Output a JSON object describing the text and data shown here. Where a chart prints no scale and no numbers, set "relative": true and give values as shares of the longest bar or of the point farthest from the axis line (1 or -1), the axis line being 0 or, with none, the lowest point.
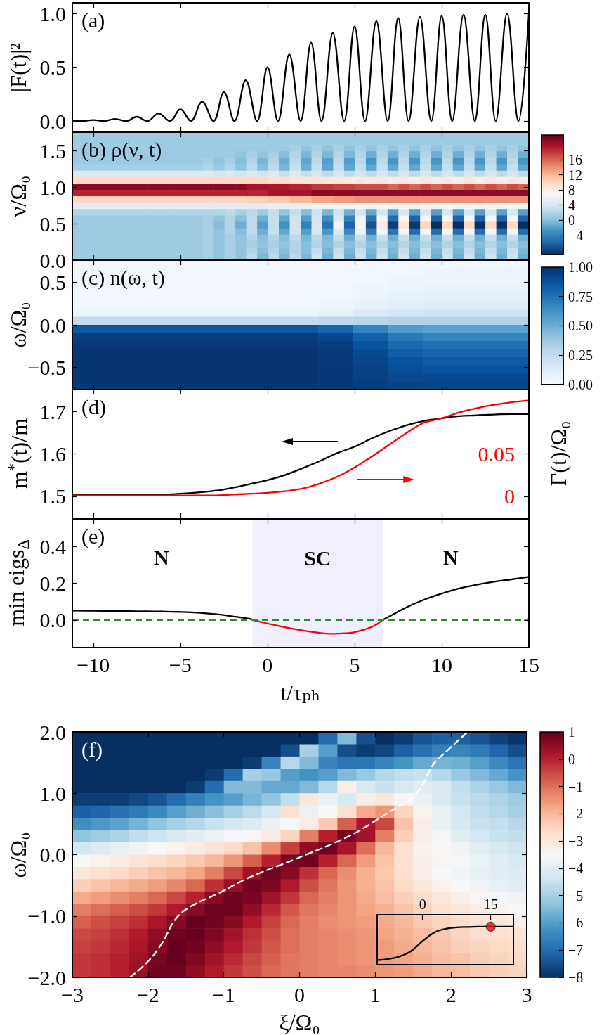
{
  "chart_data": [
    {
      "type": "line",
      "title": "(a)",
      "ylabel": "|F(t)|²",
      "x": [
        -11.2,
        -10.6,
        -10,
        -9.4,
        -8.75,
        -8.1,
        -7.5,
        -6.9,
        -6.25,
        -5.6,
        -5,
        -4.4,
        -3.75,
        -3.1,
        -2.5,
        -1.9,
        -1.25,
        -0.6,
        0,
        0.6,
        1.25,
        1.9,
        2.5,
        3.1,
        3.75,
        4.4,
        5,
        5.6,
        6.25,
        6.9,
        7.5,
        8.1,
        8.75,
        9.4,
        10,
        10.6,
        11.25,
        11.9,
        12.5,
        13.1,
        13.75,
        14.4,
        15
      ],
      "series": [
        {
          "color": "#000000",
          "values": [
            0,
            0,
            0.01,
            0,
            0.02,
            0,
            0.04,
            0,
            0.07,
            0,
            0.11,
            0,
            0.18,
            0,
            0.27,
            0,
            0.38,
            0,
            0.5,
            0,
            0.62,
            0,
            0.73,
            0,
            0.82,
            0,
            0.88,
            0,
            0.93,
            0,
            0.96,
            0,
            0.97,
            0,
            0.98,
            0,
            0.99,
            0,
            0.99,
            0,
            1,
            0,
            1
          ]
        }
      ],
      "xlim": [
        -11.2,
        15
      ],
      "xticks": [
        -10,
        -5,
        0,
        5,
        10,
        15
      ],
      "ylim": [
        -0.1,
        1.1
      ],
      "yticks": [
        {
          "value": 0,
          "label": "0.0"
        },
        0.5,
        {
          "value": 1,
          "label": "1.0"
        }
      ],
      "tick_labels": "y"
    },
    {
      "type": "heatmap",
      "title": "(b) ρ(ν, t)",
      "ylabel": "ν/Ω₀",
      "x": [
        -10.89,
        -10.26,
        -9.64,
        -9.02,
        -8.39,
        -7.77,
        -7.15,
        -6.52,
        -5.9,
        -5.27,
        -4.65,
        -4.03,
        -3.4,
        -2.78,
        -2.16,
        -1.53,
        -0.91,
        -0.28,
        0.34,
        0.96,
        1.59,
        2.21,
        2.84,
        3.46,
        4.08,
        4.71,
        5.33,
        5.96,
        6.58,
        7.2,
        7.83,
        8.45,
        9.07,
        9.7,
        10.32,
        10.95,
        11.57,
        12.19,
        12.82,
        13.44,
        14.06,
        14.69
      ],
      "cells": [
        [
          1,
          1,
          1,
          1,
          1,
          1,
          1,
          1,
          1,
          1,
          1,
          1,
          1,
          1,
          1,
          1,
          1,
          1,
          1,
          1,
          1,
          1,
          1,
          1,
          1,
          1,
          1,
          1,
          1,
          1,
          1,
          1,
          1,
          1,
          1,
          1,
          1,
          1,
          1,
          1,
          1,
          1
        ],
        [
          1,
          1,
          1,
          1,
          1,
          1,
          1,
          1,
          1,
          1,
          1,
          1,
          1,
          1,
          1,
          1,
          1,
          1,
          1,
          1,
          1,
          1,
          1,
          1,
          1,
          1,
          1,
          1,
          1,
          1,
          1,
          1,
          1,
          1,
          1,
          1,
          1,
          1,
          1,
          1,
          1,
          1
        ],
        [
          1,
          1,
          1,
          1,
          1,
          1,
          1,
          1,
          1,
          1,
          1,
          1,
          1,
          1,
          1,
          1,
          1,
          1,
          1,
          1,
          1.5,
          0.5,
          1.5,
          0.5,
          1.5,
          0.5,
          1.5,
          0.5,
          1.5,
          0.5,
          1.5,
          0.5,
          1.5,
          0.5,
          1.5,
          0.5,
          1.5,
          0.5,
          1.5,
          0.5,
          1.5,
          0.5
        ],
        [
          1,
          1,
          1,
          1,
          1,
          1,
          1,
          1,
          1,
          1,
          1,
          1,
          1,
          1,
          1,
          0.5,
          1.5,
          0.5,
          1.5,
          0,
          2,
          -0.5,
          2,
          -0.5,
          2,
          -0.5,
          2,
          -1,
          2,
          -1,
          2,
          -1,
          2,
          -1,
          2,
          -1,
          2,
          -1,
          2,
          -1,
          2,
          -1
        ],
        [
          1,
          1,
          1,
          1,
          1,
          1,
          1,
          1,
          1,
          1,
          1,
          1,
          1.5,
          0.5,
          1.5,
          0,
          2,
          -0.5,
          2,
          -1,
          2.5,
          -1.5,
          2.5,
          -2,
          2.5,
          -2,
          2.5,
          -2.5,
          2.5,
          -2.5,
          2.5,
          -2.5,
          2.5,
          -2.5,
          2.5,
          -2.5,
          2.5,
          -2.5,
          2.5,
          -2.5,
          2.5,
          -2.5
        ],
        [
          1.5,
          1.5,
          1.5,
          1.5,
          1.5,
          1.5,
          1.5,
          1.5,
          1.5,
          1.5,
          1.5,
          1.5,
          2,
          1,
          2,
          0.5,
          2.5,
          0,
          2.5,
          -0.5,
          3,
          -1,
          3,
          -1.5,
          3,
          -1.5,
          3,
          -1.5,
          3,
          -1.5,
          3,
          -1.5,
          3,
          -1.5,
          3,
          -1.5,
          3,
          -1.5,
          3,
          -1.5,
          3,
          -1.5
        ],
        [
          4.5,
          4.5,
          4.5,
          4.5,
          4.5,
          4.5,
          4.5,
          4.5,
          4.5,
          4.5,
          4.5,
          4.5,
          4.5,
          4,
          4.5,
          4,
          4.5,
          3.5,
          4.5,
          3,
          4.5,
          3,
          4,
          2.5,
          4,
          2.5,
          4,
          2.5,
          4,
          2.5,
          4,
          2.5,
          4,
          2.5,
          4,
          2.5,
          4,
          2.5,
          4,
          2.5,
          4,
          2.5
        ],
        [
          10,
          10,
          10,
          10,
          10,
          10,
          10,
          10,
          10,
          10,
          10,
          10,
          10,
          10,
          10,
          10,
          10,
          10,
          9.5,
          9.5,
          9,
          9,
          9,
          8.5,
          8.5,
          8,
          8.5,
          8,
          8.5,
          8,
          8.5,
          8,
          8.5,
          8,
          8.5,
          8,
          8.5,
          8,
          8.5,
          8,
          8.5,
          8
        ],
        [
          21,
          21,
          21,
          21,
          21,
          21,
          21,
          21,
          21,
          21,
          21,
          21,
          21,
          21,
          21,
          21,
          20,
          20,
          19.5,
          19.5,
          19,
          19,
          18,
          18,
          17.5,
          17.5,
          17,
          17,
          17,
          16,
          17,
          16,
          17,
          16,
          17,
          16,
          17,
          16,
          17,
          16,
          17,
          16
        ],
        [
          19,
          19,
          19,
          19,
          19,
          19,
          19,
          19,
          19,
          19,
          19,
          19,
          19,
          19,
          19,
          19,
          19,
          19,
          20,
          20,
          20,
          20,
          21,
          21,
          21,
          21,
          21,
          21,
          21,
          21,
          21,
          21,
          21,
          21,
          21,
          21,
          21,
          21,
          21,
          21,
          21,
          21
        ],
        [
          10,
          10,
          10,
          10,
          10,
          10,
          10,
          10,
          10,
          10,
          10,
          10,
          10,
          10,
          10,
          10,
          10.5,
          10.5,
          11,
          11,
          12,
          12,
          13,
          13,
          13.5,
          13.5,
          14,
          14,
          14,
          14,
          14,
          14,
          14,
          14,
          14,
          14,
          14,
          14,
          14,
          14,
          14,
          14
        ],
        [
          5,
          5,
          5,
          5,
          5,
          5,
          5,
          5,
          5,
          5,
          5,
          5,
          5,
          5,
          5,
          5,
          5,
          5,
          5.5,
          5.5,
          5.5,
          5.5,
          6,
          6,
          6,
          6,
          7,
          6,
          7,
          6,
          7,
          6,
          7,
          6,
          7,
          6,
          7,
          6,
          7,
          6,
          7,
          6
        ],
        [
          2,
          2,
          2,
          2,
          2,
          2,
          2,
          2,
          2,
          2,
          2,
          2,
          2,
          2,
          2.5,
          1.5,
          2.5,
          1,
          3,
          0.5,
          3,
          0,
          3.5,
          -0.5,
          3.5,
          -1,
          4,
          -1.5,
          4,
          -2,
          4,
          -2,
          4,
          -2,
          4,
          -2,
          4,
          -2,
          4,
          -2,
          4,
          -2
        ],
        [
          1,
          1,
          1,
          1,
          1,
          1,
          1,
          1,
          1,
          1,
          1,
          1,
          1.5,
          0.5,
          2,
          0,
          2.5,
          -1,
          3,
          -1.5,
          3.5,
          -2,
          4,
          -3,
          4.5,
          -4,
          6,
          -5,
          6.5,
          -5.5,
          7,
          -6,
          7,
          -6,
          7,
          -6,
          7,
          -6,
          7,
          -6,
          7,
          -6
        ],
        [
          1,
          1,
          1,
          1,
          1,
          1,
          1,
          1,
          1,
          1,
          1,
          1,
          1.5,
          0,
          2,
          -1,
          2.5,
          -2,
          3,
          -3,
          3.5,
          -4,
          4,
          -5,
          6,
          -6,
          7,
          -7,
          8,
          -8,
          9,
          -8.5,
          10,
          -9,
          10,
          -9,
          10,
          -9,
          10,
          -9,
          10,
          -9
        ],
        [
          1,
          1,
          1,
          1,
          1,
          1,
          1,
          1,
          1,
          1,
          1,
          1,
          1.5,
          0.5,
          2,
          0,
          2.5,
          -1,
          3,
          -1.5,
          3.5,
          -2,
          4,
          -2.5,
          4.5,
          -3.5,
          6,
          -4.5,
          6.5,
          -5,
          6.5,
          -5.5,
          6.5,
          -5.5,
          6.5,
          -5.5,
          6.5,
          -5.5,
          6.5,
          -5.5,
          6.5,
          -5.5
        ],
        [
          1,
          1,
          1,
          1,
          1,
          1,
          1,
          1,
          1,
          1,
          1,
          1,
          1.5,
          0.5,
          1.5,
          0.5,
          2,
          0,
          2,
          0,
          2.5,
          -0.5,
          2.5,
          -0.5,
          3,
          -1,
          3,
          -1,
          3,
          -1,
          3,
          -1,
          3,
          -1,
          3,
          -1,
          3,
          -1,
          3,
          -1,
          3,
          -1
        ],
        [
          1,
          1,
          1,
          1,
          1,
          1,
          1,
          1,
          1,
          1,
          1,
          1,
          1.5,
          0.5,
          1.5,
          0.5,
          1.5,
          0.5,
          1.5,
          0.5,
          2,
          0,
          2,
          0,
          2,
          0,
          2,
          0,
          2,
          0,
          2,
          0,
          2,
          0,
          2,
          0,
          2,
          0,
          2,
          0,
          2,
          0
        ],
        [
          1,
          1,
          1,
          1,
          1,
          1,
          1,
          1,
          1,
          1,
          1,
          1,
          1.5,
          0.5,
          1.5,
          0.5,
          2,
          0,
          2,
          0,
          2,
          0,
          3,
          -0.5,
          3,
          -0.5,
          3,
          -0.5,
          3,
          -0.5,
          3,
          -0.5,
          3,
          -0.5,
          3,
          -0.5,
          3,
          -0.5,
          3,
          -0.5,
          3,
          -0.5
        ],
        [
          1,
          1,
          1,
          1,
          1,
          1,
          1,
          1,
          1,
          1,
          1,
          1,
          1.5,
          0.5,
          1.5,
          0.5,
          2.5,
          -0.5,
          2.5,
          -0.5,
          2.5,
          -0.5,
          3.5,
          -1,
          3.5,
          -1,
          3.5,
          -1,
          3.5,
          -1,
          3.5,
          -1,
          3.5,
          -1,
          3.5,
          -1,
          3.5,
          -1,
          3.5,
          -1,
          3.5,
          -1
        ]
      ],
      "colors": [
        "#053061",
        "#2166ac",
        "#4393c3",
        "#92c5de",
        "#d1e5f0",
        "#f7f7f7",
        "#fddbc7",
        "#f4a582",
        "#d6604d",
        "#b2182b",
        "#67001f"
      ],
      "clim": [
        -9,
        22.5
      ],
      "cticks": [
        {
          "value": -4,
          "label": "−4"
        },
        0,
        4,
        8,
        12,
        16
      ],
      "xlim": [
        -11.2,
        15
      ],
      "xticks": [
        -10,
        -5,
        0,
        5,
        10,
        15
      ],
      "ylim": [
        0,
        1.75
      ],
      "yticks": [
        {
          "value": 0,
          "label": "0.0"
        },
        0.5,
        {
          "value": 1,
          "label": "1.0"
        },
        1.5
      ],
      "tick_labels": "y"
    },
    {
      "type": "heatmap",
      "title": "(c) n(ω, t)",
      "ylabel": "ω/Ω₀",
      "x": [
        -10.19,
        -8.18,
        -6.16,
        -4.15,
        -2.13,
        -0.12,
        1.9,
        3.92,
        5.93,
        7.95,
        9.96,
        11.98,
        13.99
      ],
      "cells": [
        [
          0.03,
          0.03,
          0.03,
          0.03,
          0.03,
          0.03,
          0.03,
          0.03,
          0.03,
          0.04,
          0.04,
          0.04,
          0.04
        ],
        [
          0.03,
          0.03,
          0.03,
          0.03,
          0.03,
          0.03,
          0.03,
          0.03,
          0.04,
          0.04,
          0.05,
          0.05,
          0.05
        ],
        [
          0.03,
          0.03,
          0.03,
          0.03,
          0.03,
          0.03,
          0.03,
          0.03,
          0.04,
          0.05,
          0.06,
          0.06,
          0.06
        ],
        [
          0.03,
          0.03,
          0.03,
          0.03,
          0.03,
          0.03,
          0.03,
          0.03,
          0.05,
          0.06,
          0.07,
          0.07,
          0.07
        ],
        [
          0.03,
          0.03,
          0.03,
          0.03,
          0.03,
          0.03,
          0.03,
          0.04,
          0.06,
          0.08,
          0.09,
          0.09,
          0.09
        ],
        [
          0.04,
          0.04,
          0.04,
          0.04,
          0.04,
          0.04,
          0.04,
          0.05,
          0.08,
          0.11,
          0.12,
          0.12,
          0.12
        ],
        [
          0.06,
          0.06,
          0.06,
          0.06,
          0.06,
          0.06,
          0.06,
          0.08,
          0.12,
          0.16,
          0.17,
          0.17,
          0.17
        ],
        [
          0.25,
          0.25,
          0.25,
          0.25,
          0.25,
          0.25,
          0.25,
          0.27,
          0.29,
          0.3,
          0.31,
          0.31,
          0.31
        ],
        [
          0.85,
          0.85,
          0.85,
          0.85,
          0.85,
          0.85,
          0.85,
          0.8,
          0.68,
          0.58,
          0.55,
          0.55,
          0.55
        ],
        [
          0.95,
          0.95,
          0.95,
          0.95,
          0.95,
          0.95,
          0.95,
          0.92,
          0.82,
          0.72,
          0.68,
          0.68,
          0.68
        ],
        [
          0.97,
          0.97,
          0.97,
          0.97,
          0.97,
          0.97,
          0.97,
          0.95,
          0.87,
          0.78,
          0.75,
          0.75,
          0.75
        ],
        [
          0.98,
          0.98,
          0.98,
          0.98,
          0.98,
          0.98,
          0.98,
          0.96,
          0.9,
          0.83,
          0.8,
          0.8,
          0.8
        ],
        [
          0.98,
          0.98,
          0.98,
          0.98,
          0.98,
          0.98,
          0.98,
          0.96,
          0.92,
          0.87,
          0.84,
          0.84,
          0.84
        ],
        [
          0.98,
          0.98,
          0.98,
          0.98,
          0.98,
          0.98,
          0.98,
          0.97,
          0.93,
          0.89,
          0.87,
          0.87,
          0.87
        ],
        [
          0.98,
          0.98,
          0.98,
          0.98,
          0.98,
          0.98,
          0.98,
          0.97,
          0.94,
          0.91,
          0.9,
          0.9,
          0.9
        ],
        [
          0.98,
          0.98,
          0.98,
          0.98,
          0.98,
          0.98,
          0.98,
          0.97,
          0.95,
          0.93,
          0.92,
          0.92,
          0.92
        ]
      ],
      "colors": [
        "#f7fbff",
        "#deebf7",
        "#c6dbef",
        "#9ecae1",
        "#6baed6",
        "#4292c6",
        "#2171b5",
        "#08519c",
        "#08306b"
      ],
      "clim": [
        0,
        1
      ],
      "cticks": [
        {
          "value": 0,
          "label": "0.00"
        },
        0.25,
        {
          "value": 0.5,
          "label": "0.50"
        },
        0.75,
        {
          "value": 1,
          "label": "1.00"
        }
      ],
      "xlim": [
        -11.2,
        15
      ],
      "xticks": [
        -10,
        -5,
        0,
        5,
        10,
        15
      ],
      "ylim": [
        -0.76,
        0.76
      ],
      "yticks": [
        {
          "value": -0.5,
          "label": "−0.5"
        },
        {
          "value": 0,
          "label": "0.0"
        },
        0.5
      ],
      "tick_labels": "y"
    },
    {
      "type": "line",
      "title": "(d)",
      "ylabel": "m$^{*}$(t)/m",
      "y2label": "Γ(t)/Ω₀",
      "series": [
        {
          "color": "#000000",
          "x": [
            -11.2,
            -10,
            -9,
            -8,
            -7,
            -6,
            -5,
            -4,
            -3,
            -2,
            -1,
            0,
            1,
            2,
            3,
            4,
            5,
            6,
            7,
            8,
            9,
            10,
            11,
            12,
            13,
            14,
            15
          ],
          "values": [
            1.503,
            1.503,
            1.503,
            1.503,
            1.504,
            1.504,
            1.506,
            1.509,
            1.513,
            1.52,
            1.529,
            1.538,
            1.55,
            1.566,
            1.583,
            1.602,
            1.617,
            1.637,
            1.654,
            1.668,
            1.678,
            1.684,
            1.689,
            1.691,
            1.693,
            1.694,
            1.694
          ]
        },
        {
          "color": "#ff0000",
          "axis": "y2",
          "x": [
            -11.2,
            -10,
            -9,
            -8,
            -7,
            -6,
            -5,
            -4,
            -3,
            -2,
            -1,
            0,
            1,
            2,
            3,
            4,
            5,
            6,
            7,
            8,
            9,
            10,
            11,
            12,
            13,
            14,
            15
          ],
          "values": [
            0.001,
            0.001,
            0.001,
            0.001,
            0.001,
            0.001,
            0.001,
            0.001,
            0.001,
            0.002,
            0.003,
            0.004,
            0.006,
            0.009,
            0.015,
            0.023,
            0.034,
            0.047,
            0.061,
            0.075,
            0.087,
            0.092,
            0.099,
            0.104,
            0.108,
            0.111,
            0.113
          ]
        }
      ],
      "xlim": [
        -11.2,
        15
      ],
      "xticks": [
        -10,
        -5,
        0,
        5,
        10,
        15
      ],
      "ylim": [
        1.449,
        1.752
      ],
      "yticks": [
        1.5,
        1.6,
        1.7
      ],
      "y2lim": [
        -0.0255,
        0.126
      ],
      "y2ticks": [
        0,
        0.05
      ],
      "tick_labels": "y"
    },
    {
      "type": "line",
      "title": "(e)",
      "ylabel": "min eigs$_{Δ}$",
      "xlabel": "t/τₚₕ",
      "series": [
        {
          "color": "#000000",
          "x": [
            -11.2,
            -10,
            -9,
            -8,
            -7,
            -6,
            -5,
            -4,
            -3,
            -2,
            -1,
            -0.85,
            2.88,
            6.61,
            7,
            8,
            9,
            10,
            11,
            12,
            13,
            14,
            15
          ],
          "values": [
            0.051,
            0.05,
            0.049,
            0.048,
            0.047,
            0.046,
            0.044,
            0.04,
            0.032,
            0.02,
            0.006,
            0,
            null,
            0,
            0.02,
            0.07,
            0.111,
            0.144,
            0.172,
            0.192,
            0.208,
            0.221,
            0.235
          ]
        },
        {
          "color": "#ff0000",
          "x": [
            -0.85,
            0,
            1,
            2,
            3,
            3.5,
            4,
            5,
            6,
            6.61
          ],
          "values": [
            0,
            -0.019,
            -0.04,
            -0.057,
            -0.07,
            -0.075,
            -0.074,
            -0.066,
            -0.037,
            0
          ]
        }
      ],
      "bands": [
        {
          "axis": "x",
          "from": -0.85,
          "to": 6.61,
          "label": "SC",
          "color": "#efeffd"
        }
      ],
      "ref_lines": [
        {
          "axis": "y",
          "value": 0,
          "color": "#2a8f2a",
          "line_style": "dashed"
        }
      ],
      "annotations": [
        "N",
        "N"
      ],
      "xlim": [
        -11.2,
        15
      ],
      "xticks": [
        {
          "value": -10,
          "label": "−10"
        },
        {
          "value": -5,
          "label": "−5"
        },
        0,
        5,
        10,
        15
      ],
      "ylim": [
        -0.15,
        0.55
      ],
      "yticks": [
        {
          "value": 0,
          "label": "0.0"
        },
        0.2,
        0.4
      ]
    },
    {
      "type": "heatmap",
      "title": "(f)",
      "xlabel": "ξ/Ω₀",
      "ylabel": "ω/Ω₀",
      "x": [
        -2.875,
        -2.625,
        -2.375,
        -2.125,
        -1.875,
        -1.625,
        -1.375,
        -1.125,
        -0.875,
        -0.625,
        -0.375,
        -0.125,
        0.125,
        0.375,
        0.625,
        0.875,
        1.125,
        1.375,
        1.625,
        1.875,
        2.125,
        2.375,
        2.625,
        2.875
      ],
      "cells": [
        [
          -8,
          -8,
          -8,
          -8,
          -8,
          -8,
          -8,
          -8,
          -8,
          -8,
          -8,
          -8,
          -8,
          -7,
          -5.5,
          -7.5,
          -8,
          -7.8,
          -7.4,
          -7.2,
          -7.2,
          -7.4,
          -7.7,
          -7.9
        ],
        [
          -8,
          -8,
          -8,
          -8,
          -8,
          -8,
          -8,
          -8,
          -8,
          -8,
          -8,
          -7.5,
          -5,
          -6,
          -7.5,
          -7.8,
          -7.6,
          -7.2,
          -6.9,
          -6.6,
          -6.5,
          -6.7,
          -7.1,
          -7.5
        ],
        [
          -8,
          -8,
          -8,
          -8,
          -8,
          -8,
          -8,
          -8,
          -8,
          -7.8,
          -6.5,
          -4.8,
          -5.5,
          -6.5,
          -6.8,
          -6.8,
          -6.5,
          -6.2,
          -5.8,
          -5.6,
          -5.7,
          -6,
          -6.4,
          -6.8
        ],
        [
          -8,
          -8,
          -8,
          -8,
          -8,
          -8,
          -8,
          -7.8,
          -7,
          -5,
          -5.2,
          -6,
          -6.2,
          -6,
          -5.5,
          -5.2,
          -4.8,
          -4.6,
          -4.5,
          -4.8,
          -5.2,
          -5.5,
          -5.8,
          -6.2
        ],
        [
          -8,
          -8,
          -8,
          -8,
          -8,
          -8,
          -7.8,
          -7,
          -5.5,
          -5.5,
          -5.8,
          -5.8,
          -5.5,
          -4.8,
          -3.2,
          -4.2,
          -4.5,
          -4.2,
          -4,
          -4.2,
          -4.6,
          -4.9,
          -5.2,
          -5.5
        ],
        [
          -7.8,
          -7.8,
          -7.8,
          -7.6,
          -7.4,
          -7,
          -6.6,
          -6.2,
          -6,
          -5.6,
          -5.3,
          -4.6,
          -3,
          -3.8,
          -4.2,
          -3.2,
          -3,
          -3.4,
          -3.8,
          -4.2,
          -4.5,
          -4.7,
          -4.9,
          -5.1
        ],
        [
          -7.2,
          -7.1,
          -6.9,
          -6.7,
          -6.4,
          -6,
          -5.7,
          -5.4,
          -5,
          -4.7,
          -4.3,
          -2.8,
          -3.8,
          -3.5,
          -2.8,
          -1.8,
          -1.5,
          -2.5,
          -3.3,
          -3.9,
          -4.3,
          -4.6,
          -4.8,
          -5
        ],
        [
          -6.3,
          -6.1,
          -5.9,
          -5.6,
          -5.3,
          -5,
          -4.8,
          -4.5,
          -4.3,
          -4.1,
          -3.8,
          -3.6,
          -3.2,
          -2.3,
          -0.8,
          0.2,
          -0.5,
          -2.2,
          -3.2,
          -3.8,
          -4.2,
          -4.5,
          -4.6,
          -4.8
        ],
        [
          -5.3,
          -5.1,
          -4.9,
          -4.6,
          -4.4,
          -4.2,
          -4,
          -3.8,
          -3.6,
          -3.4,
          -3.1,
          -2.5,
          -1.2,
          0,
          0.8,
          0.3,
          -1.2,
          -2.4,
          -3.2,
          -3.6,
          -4,
          -4.3,
          -4.5,
          -4.6
        ],
        [
          -4.3,
          -4.1,
          -3.9,
          -3.7,
          -3.5,
          -3.3,
          -3.1,
          -2.9,
          -2.6,
          -2.2,
          -1.4,
          -0.4,
          0.5,
          0.9,
          0.2,
          -1,
          -2,
          -2.8,
          -3.3,
          -3.5,
          -3.7,
          -4,
          -4.2,
          -4.4
        ],
        [
          -3.5,
          -3.3,
          -3.1,
          -2.9,
          -2.7,
          -2.5,
          -2.3,
          -2,
          -1.5,
          -0.8,
          0,
          0.8,
          0.9,
          0,
          -0.9,
          -1.6,
          -2.2,
          -2.8,
          -3.2,
          -3.4,
          -3.6,
          -3.8,
          -4,
          -4.2
        ],
        [
          -3,
          -2.8,
          -2.6,
          -2.4,
          -2.2,
          -2,
          -1.7,
          -1.2,
          -0.5,
          0.3,
          0.9,
          0.6,
          -0.2,
          -0.9,
          -1.4,
          -1.9,
          -2.3,
          -2.8,
          -3.2,
          -3.5,
          -3.7,
          -3.9,
          -4,
          -4.1
        ],
        [
          -2.4,
          -2.2,
          -2,
          -1.8,
          -1.6,
          -1.3,
          -0.9,
          -0.2,
          0.4,
          0.9,
          0.7,
          0.1,
          -0.6,
          -1.1,
          -1.5,
          -1.9,
          -2.2,
          -2.6,
          -3,
          -3.3,
          -3.5,
          -3.7,
          -3.9,
          -4
        ],
        [
          -1.8,
          -1.6,
          -1.4,
          -1.2,
          -0.9,
          -0.5,
          0,
          0.6,
          0.9,
          0.8,
          0.3,
          -0.3,
          -0.9,
          -1.2,
          -1.5,
          -1.8,
          -2.1,
          -2.4,
          -2.7,
          -3,
          -3.2,
          -3.4,
          -3.6,
          -3.7
        ],
        [
          -1.2,
          -1,
          -0.8,
          -0.6,
          -0.3,
          0.1,
          0.6,
          0.9,
          0.9,
          0.5,
          -0.1,
          -0.7,
          -1.1,
          -1.3,
          -1.5,
          -1.7,
          -1.9,
          -2.2,
          -2.5,
          -2.8,
          -3,
          -3.2,
          -3.3,
          -3.5
        ],
        [
          -0.8,
          -0.6,
          -0.4,
          -0.2,
          0.2,
          0.6,
          1,
          0.9,
          0.6,
          0.1,
          -0.4,
          -0.9,
          -1.2,
          -1.4,
          -1.5,
          -1.6,
          -1.8,
          -2,
          -2.3,
          -2.5,
          -2.7,
          -2.9,
          -3,
          -3.2
        ],
        [
          -0.5,
          -0.4,
          -0.2,
          0.1,
          0.5,
          0.9,
          1,
          0.7,
          0.3,
          -0.2,
          -0.6,
          -1,
          -1.2,
          -1.3,
          -1.4,
          -1.5,
          -1.7,
          -1.9,
          -2.1,
          -2.3,
          -2.5,
          -2.7,
          -2.8,
          -2.9
        ],
        [
          -0.4,
          -0.3,
          -0.1,
          0.2,
          0.6,
          1,
          0.9,
          0.5,
          0.1,
          -0.3,
          -0.7,
          -1,
          -1.2,
          -1.3,
          -1.4,
          -1.5,
          -1.6,
          -1.8,
          -2,
          -2.2,
          -2.4,
          -2.5,
          -2.6,
          -2.7
        ],
        [
          -0.3,
          -0.2,
          0,
          0.3,
          0.8,
          1,
          0.7,
          0.3,
          -0.1,
          -0.5,
          -0.8,
          -1.1,
          -1.2,
          -1.3,
          -1.4,
          -1.5,
          -1.6,
          -1.7,
          -1.9,
          -2.1,
          -2.2,
          -2.4,
          -2.5,
          -2.6
        ],
        [
          -0.3,
          -0.2,
          0,
          0.4,
          0.9,
          0.9,
          0.5,
          0.1,
          -0.3,
          -0.6,
          -0.9,
          -1.1,
          -1.2,
          -1.3,
          -1.3,
          -1.4,
          -1.5,
          -1.6,
          -1.8,
          -2,
          -2.1,
          -2.3,
          -2.4,
          -2.5
        ]
      ],
      "colors": [
        "#053061",
        "#2166ac",
        "#4393c3",
        "#92c5de",
        "#d1e5f0",
        "#f7f7f7",
        "#fddbc7",
        "#f4a582",
        "#d6604d",
        "#b2182b",
        "#67001f"
      ],
      "clim": [
        -8,
        1
      ],
      "cticks": [
        {
          "value": -8,
          "label": "−8"
        },
        {
          "value": -7,
          "label": "−7"
        },
        {
          "value": -6,
          "label": "−6"
        },
        {
          "value": -5,
          "label": "−5"
        },
        {
          "value": -4,
          "label": "−4"
        },
        {
          "value": -3,
          "label": "−3"
        },
        {
          "value": -2,
          "label": "−2"
        },
        {
          "value": -1,
          "label": "−1"
        },
        0,
        1
      ],
      "series": [
        {
          "type": "line",
          "color": "#ffffff",
          "line_style": "dashed",
          "x": [
            -2.24,
            -2,
            -1.82,
            -1.63,
            -1.43,
            -1.07,
            -0.66,
            -0.05,
            0.68,
            1.19,
            1.45,
            1.61,
            1.76,
            1.91,
            2.22
          ],
          "values": [
            -2,
            -1.74,
            -1.45,
            -1.04,
            -0.84,
            -0.63,
            -0.37,
            -0.07,
            0.32,
            0.7,
            0.89,
            1.11,
            1.46,
            1.65,
            2
          ]
        }
      ],
      "xlim": [
        -3,
        3
      ],
      "xticks": [
        {
          "value": -3,
          "label": "−3"
        },
        {
          "value": -2,
          "label": "−2"
        },
        {
          "value": -1,
          "label": "−1"
        },
        0,
        1,
        2,
        3
      ],
      "ylim": [
        -2,
        2
      ],
      "yticks": [
        {
          "value": -2,
          "label": "−2.0"
        },
        {
          "value": -1,
          "label": "−1.0"
        },
        {
          "value": 0,
          "label": "0.0"
        },
        {
          "value": 1,
          "label": "1.0"
        },
        {
          "value": 2,
          "label": "2.0"
        }
      ]
    },
    {
      "type": "line",
      "relative": true,
      "x": [
        -10,
        -7.5,
        -5,
        -2.5,
        0,
        2.5,
        5,
        7.5,
        10,
        12.5,
        15,
        17.5,
        20
      ],
      "series": [
        {
          "color": "#000000",
          "values": [
            0.12,
            0.15,
            0.22,
            0.36,
            0.62,
            0.84,
            0.94,
            0.98,
            0.99,
            1,
            1,
            1,
            1
          ]
        },
        {
          "type": "scatter",
          "color": "#ff0000",
          "marker": "circle",
          "x": [
            15
          ],
          "values": [
            1
          ]
        }
      ],
      "xlim": [
        -10,
        20
      ],
      "xticks": [
        0,
        15
      ],
      "tick_labels": "x"
    }
  ]
}
